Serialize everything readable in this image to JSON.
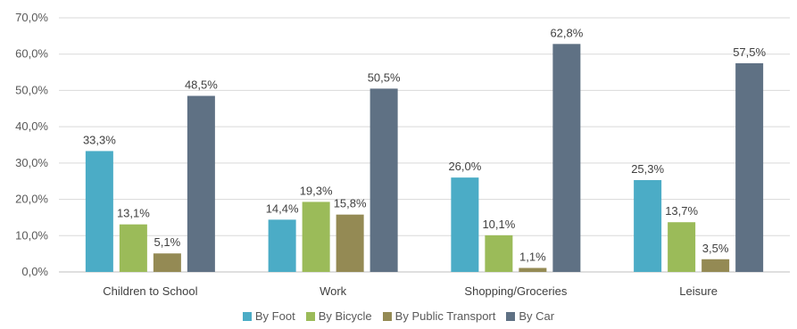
{
  "chart_data": {
    "type": "bar",
    "categories": [
      "Children to School",
      "Work",
      "Shopping/Groceries",
      "Leisure"
    ],
    "series": [
      {
        "name": "By Foot",
        "color": "#4BACC6",
        "values": [
          33.3,
          14.4,
          26.0,
          25.3
        ],
        "labels": [
          "33,3%",
          "14,4%",
          "26,0%",
          "25,3%"
        ]
      },
      {
        "name": "By Bicycle",
        "color": "#9BBB59",
        "values": [
          13.1,
          19.3,
          10.1,
          13.7
        ],
        "labels": [
          "13,1%",
          "19,3%",
          "10,1%",
          "13,7%"
        ]
      },
      {
        "name": "By Public Transport",
        "color": "#948A54",
        "values": [
          5.1,
          15.8,
          1.1,
          3.5
        ],
        "labels": [
          "5,1%",
          "15,8%",
          "1,1%",
          "3,5%"
        ]
      },
      {
        "name": "By Car",
        "color": "#5F7184",
        "values": [
          48.5,
          50.5,
          62.8,
          57.5
        ],
        "labels": [
          "48,5%",
          "50,5%",
          "62,8%",
          "57,5%"
        ]
      }
    ],
    "yticks": [
      "0,0%",
      "10,0%",
      "20,0%",
      "30,0%",
      "40,0%",
      "50,0%",
      "60,0%",
      "70,0%"
    ],
    "ylim": [
      0,
      70
    ],
    "grid": true,
    "legend": "bottom",
    "title": "",
    "xlabel": "",
    "ylabel": ""
  }
}
